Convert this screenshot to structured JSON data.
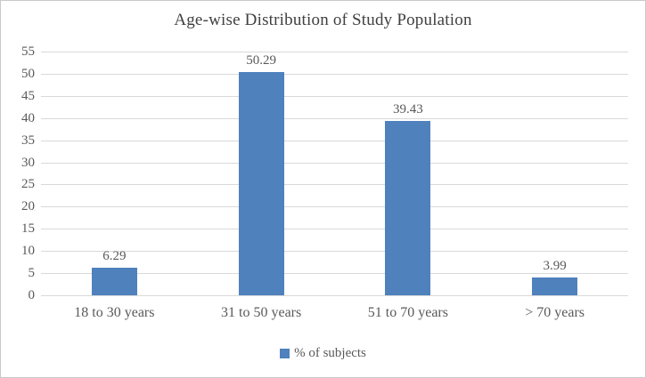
{
  "chart_data": {
    "type": "bar",
    "title": "Age-wise Distribution of Study Population",
    "categories": [
      "18 to 30 years",
      "31 to 50 years",
      "51 to 70 years",
      "> 70 years"
    ],
    "series": [
      {
        "name": "% of subjects",
        "values": [
          6.29,
          50.29,
          39.43,
          3.99
        ]
      }
    ],
    "data_labels": [
      "6.29",
      "50.29",
      "39.43",
      "3.99"
    ],
    "ylim": [
      0,
      55
    ],
    "ytick_step": 5,
    "yticks": [
      "55",
      "50",
      "45",
      "40",
      "35",
      "30",
      "25",
      "20",
      "15",
      "10",
      "5",
      "0"
    ],
    "grid": true,
    "legend_position": "bottom",
    "colors": {
      "bar": "#4F81BD",
      "gridline": "#D9D9D9",
      "axis_text": "#595959",
      "title_text": "#404040",
      "border": "#C9C9C9"
    }
  }
}
